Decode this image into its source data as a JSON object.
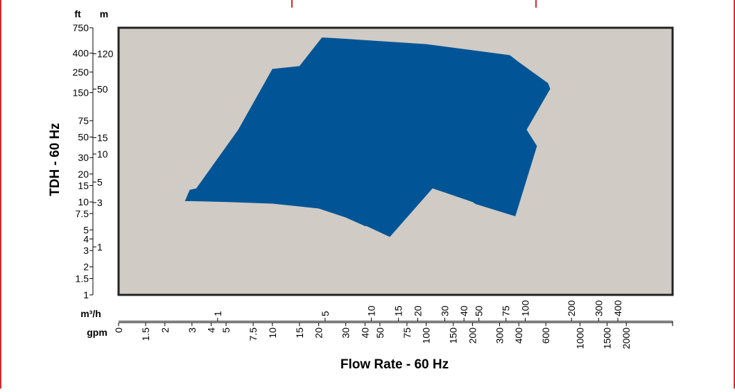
{
  "chart_data": {
    "type": "area",
    "title": "",
    "xlabel": "Flow Rate - 60 Hz",
    "ylabel": "TDH - 60 Hz",
    "x_scale": "log",
    "y_scale": "log",
    "xlim": [
      1,
      4000
    ],
    "ylim": [
      1,
      750
    ],
    "grid": false,
    "legend": "none",
    "colors": {
      "area": "#015596",
      "plot_bg": "#d0cbc5",
      "border": "#d42a2a"
    },
    "y_units": {
      "ft": "ft",
      "m": "m"
    },
    "x_units": {
      "m3h": "m³/h",
      "gpm": "gpm"
    },
    "y_ft_ticks": [
      "750",
      "400",
      "250",
      "150",
      "75",
      "50",
      "30",
      "20",
      "15",
      "10",
      "7.5",
      "5",
      "4",
      "3",
      "2",
      "1.5",
      "1"
    ],
    "y_m_ticks": [
      "120",
      "50",
      "15",
      "10",
      "5",
      "3",
      "1"
    ],
    "x_gpm_ticks": [
      "0",
      "1.5",
      "2",
      "3",
      "4",
      "5",
      "7.5",
      "10",
      "15",
      "20",
      "30",
      "40",
      "50",
      "75",
      "100",
      "150",
      "200",
      "300",
      "400",
      "600",
      "1000",
      "1500",
      "2000"
    ],
    "x_m3h_ticks": [
      "1",
      "5",
      "10",
      "15",
      "20",
      "30",
      "40",
      "50",
      "75",
      "100",
      "200",
      "300",
      "400"
    ],
    "series": [
      {
        "x": [
          2.9,
          3.2,
          6,
          10,
          15,
          21,
          25,
          30,
          100,
          350,
          400,
          620,
          640,
          450,
          525,
          380,
          210,
          200,
          110,
          58,
          41,
          40,
          30,
          20,
          10,
          5,
          3,
          2.7
        ],
        "y": [
          13.5,
          14,
          60,
          270,
          290,
          590,
          580,
          570,
          500,
          380,
          320,
          190,
          165,
          60,
          40,
          7,
          9.5,
          10,
          14,
          4.2,
          5.5,
          5.5,
          6.8,
          8.5,
          9.6,
          10,
          10.2,
          10.2
        ]
      }
    ]
  }
}
